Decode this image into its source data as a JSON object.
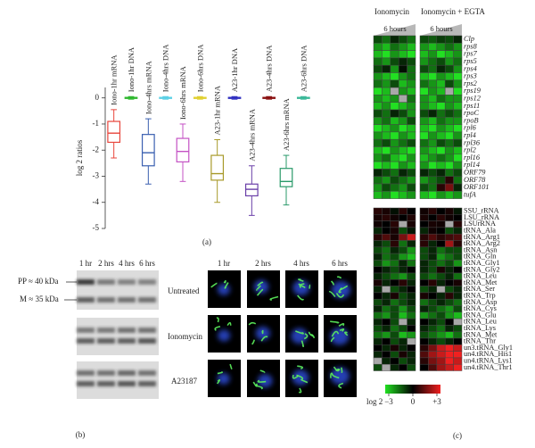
{
  "chart_data": [
    {
      "type": "box",
      "panel_label": "(a)",
      "ylabel": "log 2 ratios",
      "categories": [
        "Iono-1hr mRNA",
        "Iono-1hr DNA",
        "Iono-4hrs mRNA",
        "Iono-4hrs DNA",
        "Iono-6hrs mRNA",
        "Iono-6hrs DNA",
        "A23-1hr mRNA",
        "A23-1hr DNA",
        "A23-4hrs mRNA",
        "A23-4hrs DNA",
        "A23-6hrs mRNA",
        "A23-6hrs DNA"
      ],
      "colors": [
        "#e8463c",
        "#2eb82e",
        "#3a5fb0",
        "#5bd0e6",
        "#c452c4",
        "#e0d030",
        "#a89a2a",
        "#3030c0",
        "#6a3fa8",
        "#8a1010",
        "#2a9a6a",
        "#3ab898"
      ],
      "min": [
        -2.3,
        -0.05,
        -3.3,
        -0.05,
        -3.2,
        -0.05,
        -4.0,
        -0.05,
        -4.5,
        -0.05,
        -4.1,
        -0.05
      ],
      "q1": [
        -1.7,
        -0.02,
        -2.6,
        -0.02,
        -2.45,
        -0.02,
        -3.15,
        -0.02,
        -3.75,
        -0.02,
        -3.4,
        -0.02
      ],
      "median": [
        -1.35,
        0,
        -2.1,
        0,
        -2.05,
        0,
        -2.9,
        0,
        -3.5,
        0,
        -3.2,
        0
      ],
      "q3": [
        -0.9,
        0.02,
        -1.4,
        0.02,
        -1.55,
        0.02,
        -2.2,
        0.02,
        -3.3,
        0.02,
        -2.7,
        0.02
      ],
      "max": [
        -0.45,
        0.05,
        -0.8,
        0.05,
        -1.0,
        0.05,
        -1.6,
        0.05,
        -2.6,
        0.05,
        -2.2,
        0.05
      ],
      "ylim": [
        -5,
        0.4
      ],
      "yticks": [
        0,
        -1,
        -2,
        -3,
        -4,
        -5
      ]
    },
    {
      "type": "heatmap",
      "panel_label": "(c)",
      "groups": [
        "Ionomycin",
        "Ionomycin + EGTA"
      ],
      "group_subtitles": [
        "6 hours",
        "6 hours"
      ],
      "colormap": [
        "#22e022",
        "#000000",
        "#f02020"
      ],
      "missing_color": "#a8a8a8",
      "vlim": [
        -3,
        3
      ],
      "colorbar_label": "log 2",
      "colorbar_ticks": [
        {
          "value": -3,
          "label": "−3"
        },
        0,
        {
          "value": 3,
          "label": "+3"
        }
      ],
      "row_groups": [
        {
          "italic": true,
          "rows": [
            "Clp",
            "rps8",
            "rps7",
            "rps5",
            "rps4",
            "rps3",
            "rps2",
            "rps19",
            "rps12",
            "rps11",
            "rpoC",
            "rpoB",
            "rpl6",
            "rpl4",
            "rpl36",
            "rpl2",
            "rpl16",
            "rpl14",
            "ORF79",
            "ORF78",
            "ORF101",
            "tufA"
          ],
          "values": [
            [
              -1,
              -1.5,
              -0.5,
              -1,
              -1.5,
              -1,
              -1.2,
              -0.8,
              -1,
              -0.5
            ],
            [
              -2,
              -2.5,
              -1.5,
              -2,
              -2.5,
              -2,
              -2.5,
              -2,
              -1.5,
              -2
            ],
            [
              -2.5,
              -3,
              -2,
              -2.5,
              -3,
              -2.5,
              -2,
              -3,
              -2.5,
              -2
            ],
            [
              -1.5,
              -2,
              -1,
              -0.5,
              -1,
              -2,
              -1.5,
              -1,
              -2,
              -1.5
            ],
            [
              -1,
              -0.5,
              -2,
              -0.2,
              -1.5,
              -1,
              -1.5,
              -0.5,
              -1,
              -2
            ],
            [
              -2,
              -2.5,
              -3,
              -2,
              -1.5,
              -2.5,
              -3,
              -2,
              -2.5,
              -3
            ],
            [
              -1.5,
              -2,
              -1,
              -2.5,
              -2,
              -1.5,
              -2,
              -2.5,
              -1,
              -2
            ],
            [
              -3,
              -2.5,
              null,
              -2,
              -2.5,
              -3,
              -2,
              -2.5,
              null,
              -3
            ],
            [
              -2,
              -2.5,
              -2,
              null,
              -1.5,
              -2,
              -2.5,
              -1.5,
              -2,
              -2
            ],
            [
              -2.5,
              -2,
              -3,
              -2.5,
              -2,
              -2,
              -2.5,
              -3,
              -2,
              -2.5
            ],
            [
              -1,
              -1.5,
              -0.5,
              -1,
              -2,
              -1,
              -0.5,
              -1.5,
              -1,
              -1.5
            ],
            [
              -2,
              -1.5,
              -2.5,
              -2,
              -1,
              -2,
              -2.5,
              -1.5,
              -2,
              -2
            ],
            [
              -3,
              -2.5,
              -2,
              -3,
              -2.5,
              -2.5,
              -3,
              -2,
              -2.5,
              -3
            ],
            [
              -2,
              -2.5,
              -3,
              -2,
              -2.5,
              -3,
              -2,
              -2.5,
              -3,
              -2
            ],
            [
              -1.5,
              -1,
              -2,
              -1.5,
              -1,
              -1.5,
              -2,
              -1,
              -1.5,
              -1
            ],
            [
              -2.5,
              -3,
              -2,
              -2.5,
              -3,
              -2,
              -2.5,
              -3,
              -2,
              -2.5
            ],
            [
              -2,
              -1.5,
              -2.5,
              -3,
              -2,
              -2.5,
              -2,
              -1.5,
              -2,
              -3
            ],
            [
              -3,
              -2.5,
              -3,
              -2,
              -2.5,
              -2,
              -3,
              -2.5,
              -3,
              -2
            ],
            [
              -0.5,
              -1,
              -1.5,
              -0.5,
              -1,
              -0.5,
              -1,
              -0.5,
              -1.5,
              -1
            ],
            [
              -1.5,
              -2,
              -1,
              -1.5,
              -2,
              -2,
              -1.5,
              -1,
              0.5,
              -1.5
            ],
            [
              -2,
              -1,
              -1.5,
              -2,
              -1,
              -1,
              -1.5,
              0.5,
              1.5,
              -0.5
            ],
            [
              -2.5,
              -2,
              -3,
              -2.5,
              -2,
              -2.5,
              -3,
              -2,
              -2.5,
              -2
            ]
          ]
        },
        {
          "italic": false,
          "rows": [
            "SSU_rRNA",
            "LSU_rRNA",
            "LSUrRNA",
            "tRNA_Ala",
            "tRNA_Arg1",
            "tRNA_Arg2",
            "tRNA_Asn",
            "tRNA_Gln",
            "tRNA_Gly1",
            "tRNA_Gly2",
            "tRNA_Leu",
            "tRNA_Met",
            "tRNA_Ser",
            "tRNA_Trp",
            "tRNA_Asp",
            "tRNA_Cys",
            "tRNA_Glu",
            "tRNA_Leu",
            "tRNA_Lys",
            "tRNA_Met",
            "tRNA_Thr",
            "un3.tRNA_Gly1",
            "un4.tRNA_His1",
            "un4.tRNA_Lys1",
            "un4.tRNA_Thr1"
          ],
          "values": [
            [
              0.5,
              0.3,
              -0.2,
              0.5,
              0,
              0.2,
              0.5,
              0,
              0.3,
              -0.3
            ],
            [
              0.3,
              0.5,
              0.2,
              0,
              0.4,
              0.3,
              0,
              0.5,
              0.2,
              0
            ],
            [
              0.2,
              0,
              0.5,
              null,
              0.3,
              0,
              0.3,
              0.2,
              null,
              0.5
            ],
            [
              -0.5,
              0,
              0.3,
              -1,
              -0.3,
              -0.5,
              0.2,
              0,
              -1,
              -0.5
            ],
            [
              0.5,
              1,
              0.3,
              1.5,
              2.5,
              0.5,
              1,
              0.5,
              0.8,
              1
            ],
            [
              -0.5,
              -1,
              0.5,
              -1.5,
              -0.5,
              0.5,
              -0.5,
              0,
              2,
              0.5
            ],
            [
              -1,
              -1.5,
              -0.5,
              -1,
              -2,
              -1,
              -0.5,
              -1.5,
              -1,
              -1
            ],
            [
              -0.5,
              -1.5,
              -1,
              -2,
              -2.5,
              -1,
              -0.5,
              -2,
              -1.5,
              -1
            ],
            [
              -1,
              -2,
              -1.5,
              -0.5,
              -1.5,
              -0.5,
              -1,
              -1.5,
              -1,
              -2
            ],
            [
              0,
              -0.5,
              -1,
              -0.5,
              0,
              -0.5,
              -1,
              0.3,
              -0.5,
              0
            ],
            [
              -0.5,
              -1,
              -1.5,
              -2,
              -1,
              -1,
              -1.5,
              -1,
              -0.5,
              -1.5
            ],
            [
              0.3,
              -0.5,
              0,
              0.5,
              -0.5,
              0,
              0.5,
              -0.5,
              0,
              0.3
            ],
            [
              -0.5,
              null,
              -1,
              -0.5,
              0,
              -1,
              -0.5,
              null,
              -1,
              -0.5
            ],
            [
              0,
              -0.5,
              0.3,
              -1,
              -0.5,
              0.3,
              0,
              -0.5,
              0.5,
              -0.5
            ],
            [
              -1,
              -0.5,
              -1.5,
              -1,
              -0.5,
              -1.5,
              -1,
              -0.5,
              -1,
              -1.5
            ],
            [
              -0.5,
              -1.5,
              -1,
              -2,
              -1,
              -0.5,
              -1,
              -1.5,
              -2,
              -1
            ],
            [
              -1.5,
              -2,
              -1,
              -2.5,
              -1.5,
              -2,
              -1.5,
              -1,
              -2,
              -2.5
            ],
            [
              -0.5,
              0,
              -1,
              null,
              -0.5,
              0,
              -0.5,
              -1,
              0,
              null
            ],
            [
              -1,
              -0.5,
              -1.5,
              -1,
              0,
              -0.5,
              -1,
              -1.5,
              -0.5,
              -1
            ],
            [
              -1.5,
              -2,
              -1,
              -2.5,
              -2,
              -1,
              -1.5,
              -2,
              -2.5,
              -1.5
            ],
            [
              -0.5,
              0,
              -1,
              -0.5,
              null,
              0,
              -0.5,
              -1,
              -0.5,
              0
            ],
            [
              0,
              -0.5,
              0.3,
              -0.5,
              0,
              0.5,
              1.5,
              2.5,
              3,
              2.5
            ],
            [
              -0.5,
              0,
              -1,
              0.3,
              -0.5,
              1,
              2,
              2.5,
              3,
              3
            ],
            [
              null,
              -0.5,
              0,
              -1,
              -0.5,
              0.5,
              1.5,
              2,
              3,
              2.5
            ],
            [
              -1,
              null,
              -0.5,
              0,
              -1,
              0,
              1,
              2,
              2.5,
              3
            ]
          ]
        }
      ]
    }
  ],
  "panel_b": {
    "label": "(b)",
    "lanes": [
      "1 hr",
      "2 hrs",
      "4 hrs",
      "6 hrs"
    ],
    "markers": [
      "PP ≈ 40 kDa",
      "M ≈ 35 kDa"
    ],
    "conditions": [
      "Untreated",
      "Ionomycin",
      "A23187"
    ],
    "image_times": [
      "1 hr",
      "2 hrs",
      "4 hrs",
      "6 hrs"
    ]
  }
}
